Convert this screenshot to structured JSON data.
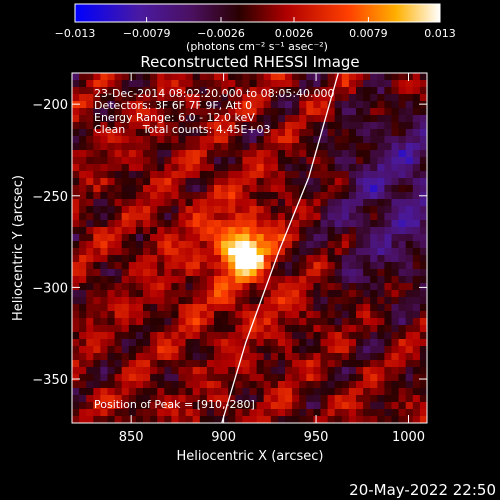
{
  "chart_data": {
    "type": "heatmap",
    "title": "Reconstructed RHESSI Image",
    "xlabel": "Heliocentric X (arcsec)",
    "ylabel": "Heliocentric Y (arcsec)",
    "xlim": [
      818,
      1010
    ],
    "ylim": [
      -374,
      -183
    ],
    "x_ticks": [
      850,
      900,
      950,
      1000
    ],
    "y_ticks": [
      -200,
      -250,
      -300,
      -350
    ],
    "colorbar": {
      "range": [
        -0.013,
        0.013
      ],
      "tick_labels": [
        "−0.013",
        "−0.0079",
        "−0.0026",
        "0.0026",
        "0.0079",
        "0.013"
      ],
      "tick_values": [
        -0.013,
        -0.0079,
        -0.0026,
        0.0026,
        0.0079,
        0.013
      ],
      "unit_label": "(photons cm⁻² s⁻¹ asec⁻²)",
      "colormap": "blue-purple-red-yellow-white"
    },
    "annotations": {
      "time_range": "23-Dec-2014 08:02:20.000 to 08:05:40.000",
      "detectors": "Detectors: 3F 6F 7F 9F, Att 0",
      "energy": "Energy Range: 6.0 - 12.0 keV",
      "clean": "Clean     Total counts: 4.45E+03",
      "peak": "Position of Peak = [910,-280]"
    },
    "peak": {
      "x": 910,
      "y": -280,
      "value": 0.013
    },
    "limb_curve": [
      [
        899,
        -374
      ],
      [
        912,
        -330
      ],
      [
        930,
        -280
      ],
      [
        946,
        -240
      ],
      [
        962,
        -183
      ]
    ],
    "footer_date": "20-May-2022 22:50"
  }
}
